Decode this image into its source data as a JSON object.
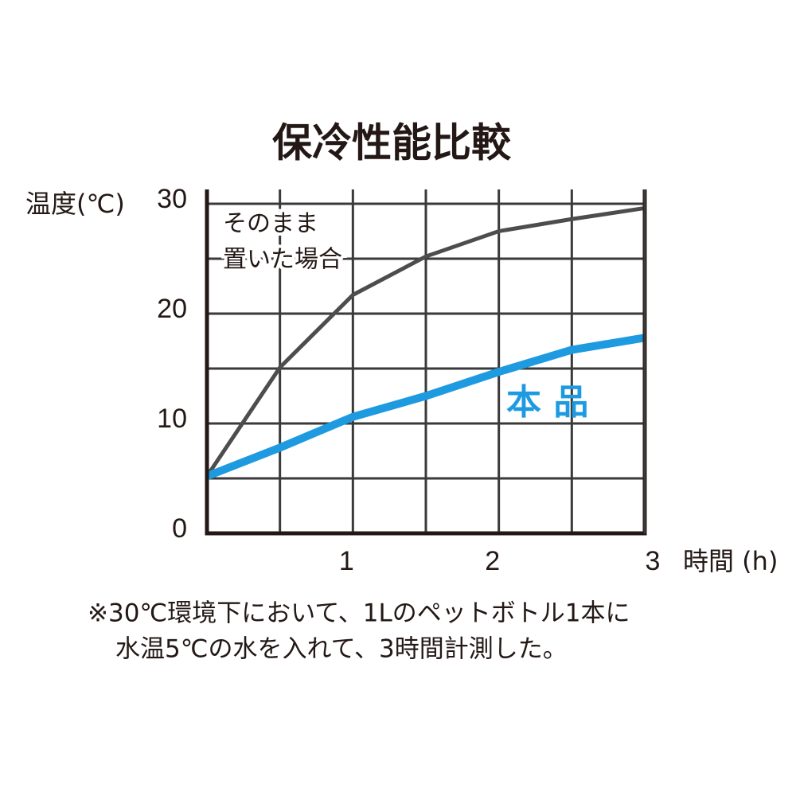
{
  "chart_data": {
    "type": "line",
    "title": "保冷性能比較",
    "y_label": "温度(℃)",
    "x_label": "時間 (h)",
    "x": [
      0,
      0.5,
      1,
      1.5,
      2,
      2.5,
      3
    ],
    "series": [
      {
        "name": "そのまま置いた場合",
        "label_lines": [
          "そのまま",
          "置いた場合"
        ],
        "color": "#4d4d4d",
        "values": [
          5.2,
          15.1,
          21.7,
          25.2,
          27.5,
          28.6,
          29.6
        ]
      },
      {
        "name": "本 品",
        "color": "#1e9be0",
        "values": [
          5.2,
          7.8,
          10.6,
          12.5,
          14.7,
          16.7,
          17.8
        ]
      }
    ],
    "xlim": [
      0,
      3
    ],
    "ylim": [
      0,
      31.3
    ],
    "xticks": [
      1,
      2,
      3
    ],
    "yticks": [
      0,
      10,
      20,
      30
    ],
    "xgrid": [
      0.5,
      1,
      1.5,
      2,
      2.5,
      3
    ],
    "ygrid": [
      5,
      10,
      15,
      20,
      25,
      30
    ],
    "grid": true,
    "notes": [
      "※30℃環境下において、1Lのペットボトル1本に",
      "水温5℃の水を入れて、3時間計測した。"
    ]
  }
}
